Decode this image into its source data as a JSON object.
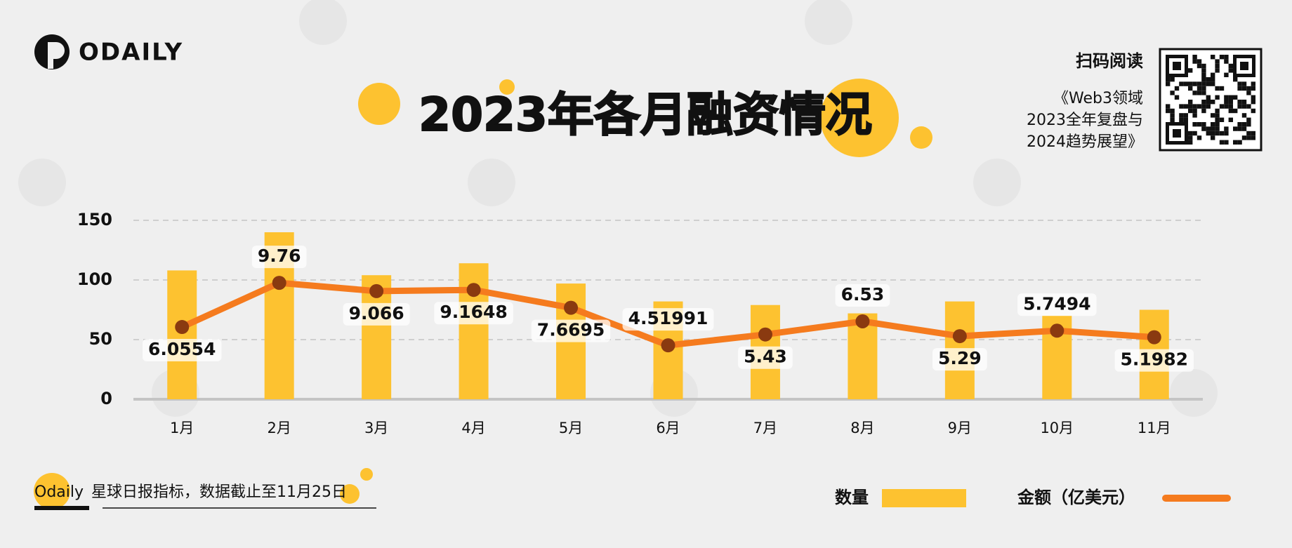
{
  "brand": "ODAILY",
  "qr_heading": "扫码阅读",
  "qr_caption": [
    "《Web3领域",
    "2023全年复盘与",
    "2024趋势展望》"
  ],
  "footnote": {
    "highlight": "Odaily",
    "text": "星球日报指标，数据截止至11月25日"
  },
  "chart_data": {
    "type": "bar-line",
    "title": "2023年各月融资情况",
    "categories": [
      "1月",
      "2月",
      "3月",
      "4月",
      "5月",
      "6月",
      "7月",
      "8月",
      "9月",
      "10月",
      "11月"
    ],
    "series": [
      {
        "name": "数量",
        "type": "bar",
        "color": "#fdc230",
        "values": [
          108,
          140,
          104,
          114,
          97,
          82,
          79,
          72,
          82,
          70,
          75
        ]
      },
      {
        "name": "金额（亿美元）",
        "type": "line",
        "axis": "y2",
        "color": "#f57b1e",
        "marker_color": "#8a3a10",
        "values": [
          6.0554,
          9.76,
          9.066,
          9.1648,
          7.6695,
          4.51991,
          5.43,
          6.53,
          5.29,
          5.7494,
          5.1982
        ]
      }
    ],
    "ylim": [
      0,
      150
    ],
    "yticks": [
      0,
      50,
      100,
      150
    ],
    "y2lim": [
      0,
      15
    ],
    "grid": true
  }
}
